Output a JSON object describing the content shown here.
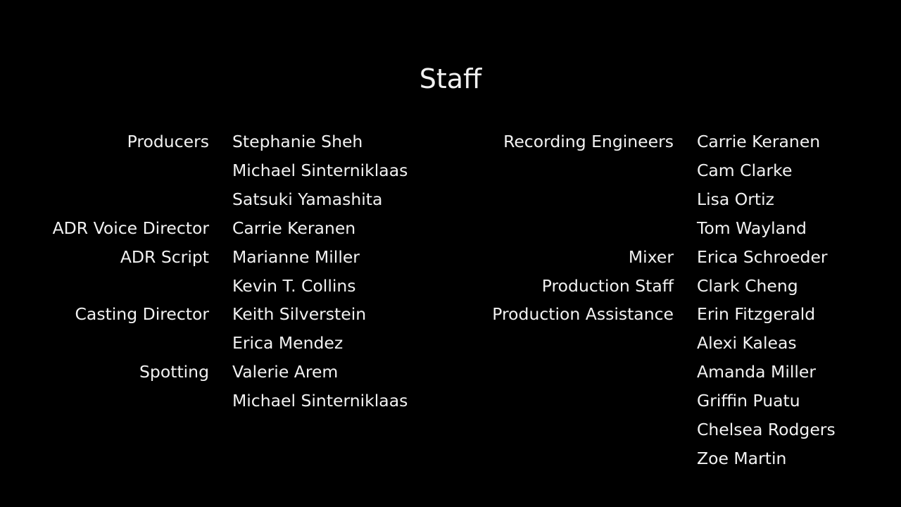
{
  "title": "Staff",
  "left_column": [
    {
      "role": "Producers",
      "names": [
        "Stephanie Sheh",
        "Michael Sinterniklaas",
        "Satsuki Yamashita"
      ]
    },
    {
      "role": "ADR Voice Director",
      "names": [
        "Carrie Keranen"
      ]
    },
    {
      "role": "ADR Script",
      "names": [
        "Marianne Miller",
        "Kevin T. Collins"
      ]
    },
    {
      "role": "Casting Director",
      "names": [
        "Keith Silverstein",
        "Erica Mendez"
      ]
    },
    {
      "role": "Spotting",
      "names": [
        "Valerie Arem",
        "Michael Sinterniklaas"
      ]
    }
  ],
  "right_column": [
    {
      "role": "Recording Engineers",
      "names": [
        "Carrie Keranen",
        "Cam Clarke",
        "Lisa Ortiz",
        "Tom Wayland"
      ]
    },
    {
      "role": "Mixer",
      "names": [
        "Erica Schroeder"
      ]
    },
    {
      "role": "Production Staff",
      "names": [
        "Clark Cheng"
      ]
    },
    {
      "role": "Production Assistance",
      "names": [
        "Erin Fitzgerald",
        "Alexi Kaleas",
        "Amanda Miller",
        "Griffin Puatu",
        "Chelsea Rodgers",
        "Zoe Martin"
      ]
    }
  ]
}
